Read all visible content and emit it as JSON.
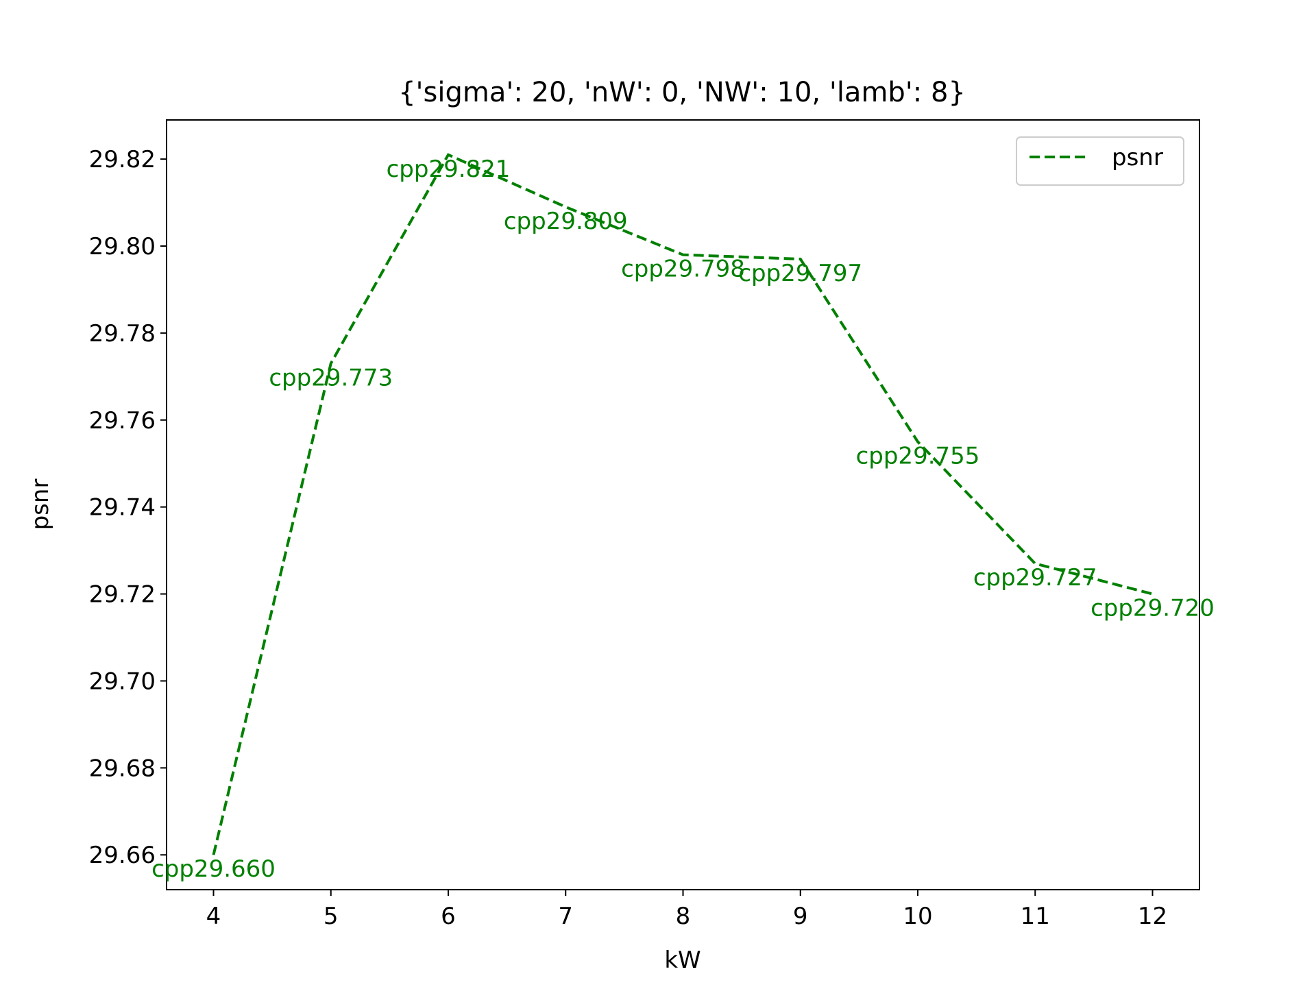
{
  "chart_data": {
    "type": "line",
    "title": "{'sigma': 20, 'nW': 0, 'NW': 10, 'lamb': 8}",
    "xlabel": "kW",
    "ylabel": "psnr",
    "x": [
      4,
      5,
      6,
      7,
      8,
      9,
      10,
      11,
      12
    ],
    "x_ticks": [
      "4",
      "5",
      "6",
      "7",
      "8",
      "9",
      "10",
      "11",
      "12"
    ],
    "xlim": [
      3.6,
      12.4
    ],
    "y_ticks": [
      "29.66",
      "29.68",
      "29.70",
      "29.72",
      "29.74",
      "29.76",
      "29.78",
      "29.80",
      "29.82"
    ],
    "ylim": [
      29.652,
      29.829
    ],
    "grid": false,
    "legend_position": "top-right",
    "series": [
      {
        "name": "psnr",
        "color": "#008000",
        "line_style": "dashed",
        "values": [
          29.66,
          29.773,
          29.821,
          29.809,
          29.798,
          29.797,
          29.755,
          29.727,
          29.72
        ],
        "point_labels": [
          "cpp29.660",
          "cpp29.773",
          "cpp29.821",
          "cpp29.809",
          "cpp29.798",
          "cpp29.797",
          "cpp29.755",
          "cpp29.727",
          "cpp29.720"
        ]
      }
    ]
  }
}
